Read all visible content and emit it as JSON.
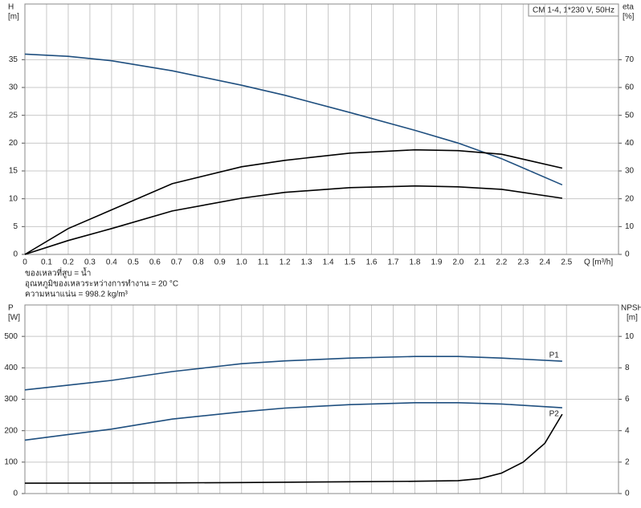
{
  "chart_data": [
    {
      "type": "line",
      "title": "CM 1-4, 1*230 V, 50Hz",
      "ylabel": "H",
      "yunit": "[m]",
      "y2label": "eta",
      "y2unit": "[%]",
      "xlabel": "Q [m³/h]",
      "notes": [
        "ของเหลวที่สูบ = น้ำ",
        "อุณหภูมิของเหลวระหว่างการทำงาน = 20 °C",
        "ความหนาแน่น = 998.2 kg/m³"
      ],
      "xlim": [
        0,
        2.74
      ],
      "ylim": [
        0,
        45
      ],
      "y2lim": [
        0,
        90
      ],
      "xticks": [
        0,
        0.1,
        0.2,
        0.3,
        0.4,
        0.5,
        0.6,
        0.7,
        0.8,
        0.9,
        {
          "value": 1,
          "label": "1.0"
        },
        1.1,
        1.2,
        1.3,
        1.4,
        1.5,
        1.6,
        1.7,
        1.8,
        1.9,
        {
          "value": 2,
          "label": "2.0"
        },
        2.1,
        2.2,
        2.3,
        2.4,
        2.5
      ],
      "yticks": [
        0,
        5,
        10,
        15,
        20,
        25,
        30,
        35
      ],
      "y2ticks": [
        0,
        10,
        20,
        30,
        40,
        50,
        60,
        70
      ],
      "grid": true,
      "series": [
        {
          "color": "#1f4f7f",
          "x": [
            0,
            0.2,
            0.4,
            0.68,
            1.0,
            1.2,
            1.5,
            1.8,
            2.0,
            2.2,
            2.48
          ],
          "values": [
            36,
            35.6,
            34.8,
            33,
            30.4,
            28.6,
            25.5,
            22.3,
            20,
            17.2,
            12.5
          ]
        },
        {
          "color": "#000000",
          "axis": "y2",
          "x": [
            0,
            0.2,
            0.4,
            0.68,
            1.0,
            1.2,
            1.5,
            1.8,
            2.0,
            2.2,
            2.48
          ],
          "values": [
            0,
            9.3,
            16,
            25.4,
            31.5,
            33.8,
            36.4,
            37.6,
            37.3,
            36,
            31
          ]
        },
        {
          "color": "#000000",
          "axis": "y2",
          "x": [
            0,
            0.2,
            0.4,
            0.68,
            1.0,
            1.2,
            1.5,
            1.8,
            2.0,
            2.2,
            2.48
          ],
          "values": [
            0,
            5,
            9.3,
            15.6,
            20.2,
            22.3,
            24,
            24.6,
            24.3,
            23.4,
            20.2
          ]
        }
      ]
    },
    {
      "type": "line",
      "ylabel": "P",
      "yunit": "[W]",
      "y2label": "NPSH",
      "y2unit": "[m]",
      "xlim": [
        0,
        2.74
      ],
      "ylim": [
        0,
        600
      ],
      "y2lim": [
        0,
        12
      ],
      "yticks": [
        0,
        100,
        200,
        300,
        400,
        500
      ],
      "y2ticks": [
        0,
        2,
        4,
        6,
        8,
        10
      ],
      "grid": true,
      "series": [
        {
          "name": "P1",
          "color": "#1f4f7f",
          "x": [
            0,
            0.2,
            0.4,
            0.68,
            1.0,
            1.2,
            1.5,
            1.8,
            2.0,
            2.2,
            2.48
          ],
          "values": [
            330,
            345,
            360,
            388,
            413,
            422,
            431,
            436,
            436,
            431,
            421
          ]
        },
        {
          "name": "P2",
          "color": "#1f4f7f",
          "x": [
            0,
            0.2,
            0.4,
            0.68,
            1.0,
            1.2,
            1.5,
            1.8,
            2.0,
            2.2,
            2.48
          ],
          "values": [
            170,
            188,
            205,
            237,
            260,
            272,
            283,
            289,
            289,
            285,
            273
          ]
        },
        {
          "color": "#000000",
          "axis": "y2",
          "x": [
            0,
            0.68,
            1.0,
            1.5,
            1.8,
            2.0,
            2.1,
            2.2,
            2.3,
            2.4,
            2.48
          ],
          "values": [
            0.66,
            0.68,
            0.7,
            0.75,
            0.78,
            0.82,
            0.95,
            1.3,
            2.0,
            3.2,
            5.05
          ]
        }
      ]
    }
  ]
}
